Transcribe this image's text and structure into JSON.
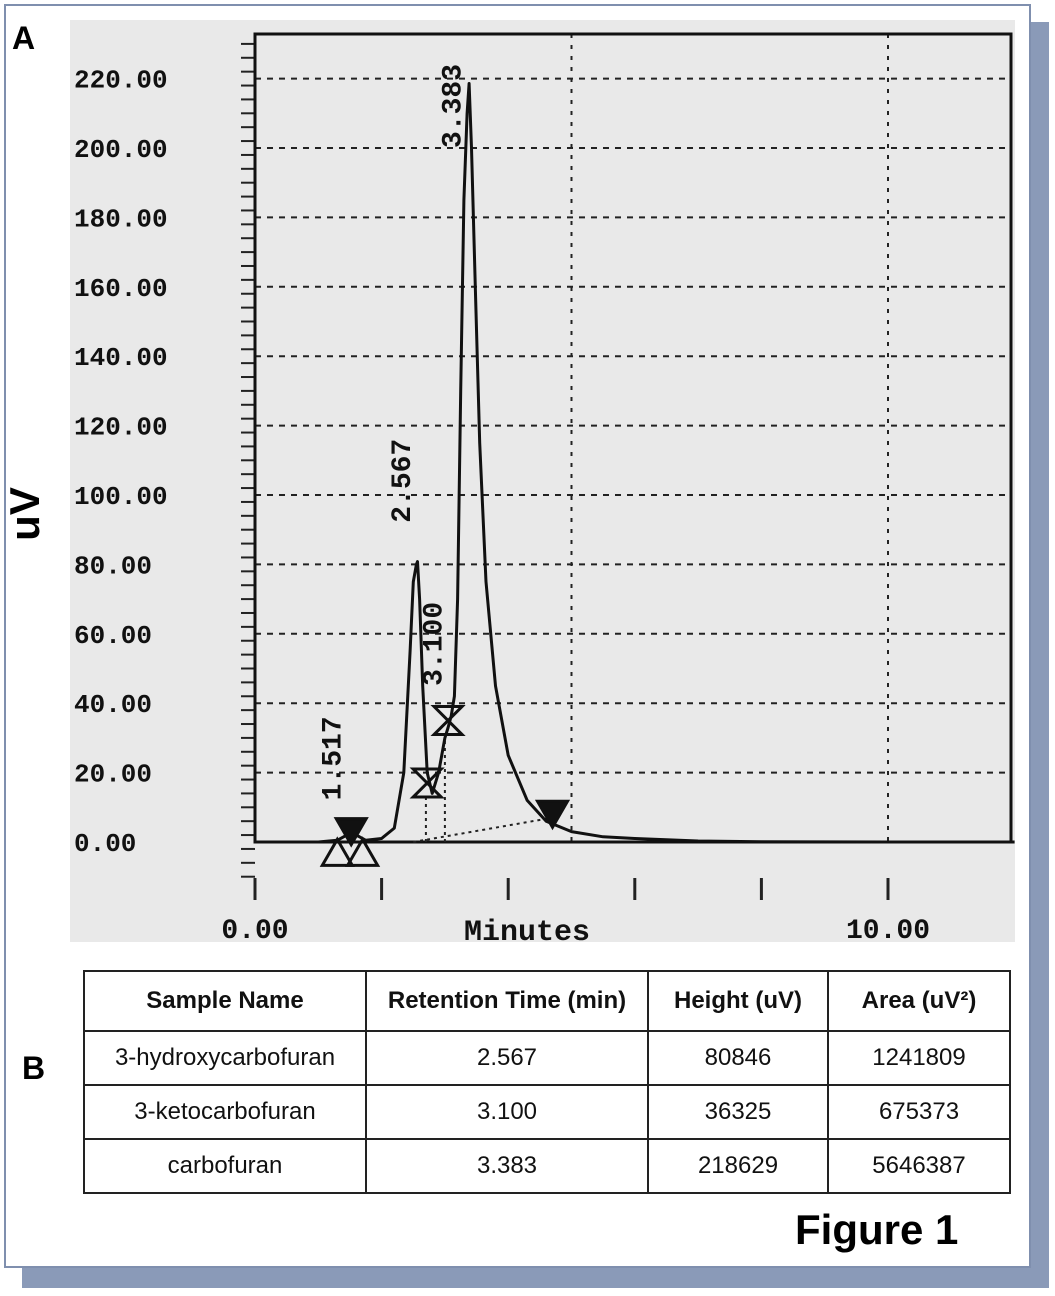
{
  "panel_a_label": "A",
  "panel_b_label": "B",
  "figure_label": "Figure 1",
  "chart_data": {
    "type": "line",
    "xlabel": "Minutes",
    "ylabel": "uV",
    "xlim": [
      0,
      12
    ],
    "ylim": [
      -10,
      235
    ],
    "x_tick_labels": [
      "0.00",
      "10.00"
    ],
    "y_tick_labels": [
      "220.00",
      "200.00",
      "180.00",
      "160.00",
      "140.00",
      "120.00",
      "100.00",
      "80.00",
      "60.00",
      "40.00",
      "20.00",
      "0.00"
    ],
    "grid": true,
    "peak_labels": [
      "1.517",
      "2.567",
      "3.100",
      "3.383"
    ],
    "series": [
      {
        "x": [
          0.0,
          1.0,
          1.3,
          1.45,
          1.52,
          1.6,
          1.75,
          2.0,
          2.2,
          2.35,
          2.45,
          2.5,
          2.55,
          2.567,
          2.6,
          2.65,
          2.72,
          2.8,
          2.9,
          3.0,
          3.05,
          3.1,
          3.15,
          3.2,
          3.25,
          3.3,
          3.35,
          3.383,
          3.42,
          3.48,
          3.55,
          3.65,
          3.8,
          4.0,
          4.3,
          4.6,
          5.0,
          5.5,
          6.0,
          7.0,
          8.0,
          10.0,
          12.0
        ],
        "y": [
          0,
          0,
          0.5,
          2,
          3.5,
          2,
          0.5,
          1,
          4,
          20,
          55,
          75,
          80,
          80.8,
          70,
          45,
          20,
          14,
          20,
          30,
          33,
          36.3,
          42,
          70,
          130,
          185,
          210,
          218.6,
          200,
          160,
          115,
          75,
          45,
          25,
          12,
          6,
          3,
          1.5,
          1,
          0.3,
          0.1,
          0,
          0
        ]
      }
    ]
  },
  "table": {
    "headers": [
      "Sample Name",
      "Retention Time (min)",
      "Height (uV)",
      "Area (uV²)"
    ],
    "rows": [
      [
        "3-hydroxycarbofuran",
        "2.567",
        "80846",
        "1241809"
      ],
      [
        "3-ketocarbofuran",
        "3.100",
        "36325",
        "675373"
      ],
      [
        "carbofuran",
        "3.383",
        "218629",
        "5646387"
      ]
    ]
  }
}
